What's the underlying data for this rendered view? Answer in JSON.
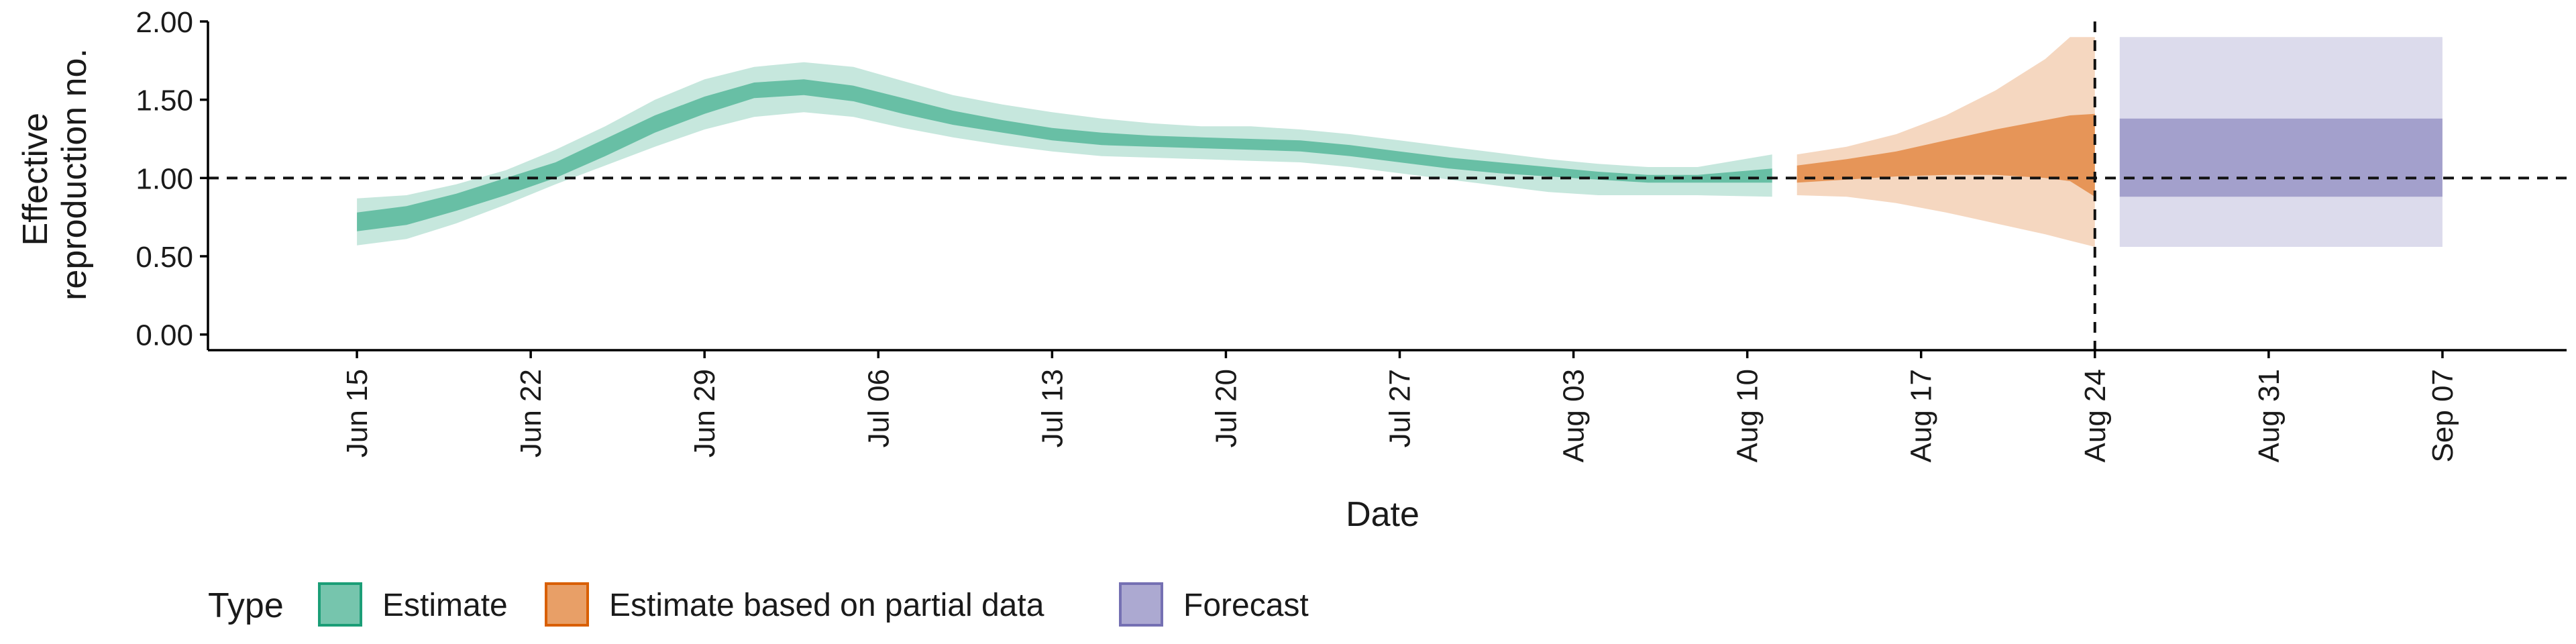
{
  "chart_data": {
    "type": "area",
    "xlabel": "Date",
    "ylabel_lines": [
      "Effective",
      "reproduction no."
    ],
    "ylim": [
      -0.1,
      2.0
    ],
    "yticks": [
      0.0,
      0.5,
      1.0,
      1.5,
      2.0
    ],
    "ytick_labels": [
      "0.00",
      "0.50",
      "1.00",
      "1.50",
      "2.00"
    ],
    "xlim": [
      "2020-06-09",
      "2020-09-12"
    ],
    "xtick_dates": [
      "2020-06-15",
      "2020-06-22",
      "2020-06-29",
      "2020-07-06",
      "2020-07-13",
      "2020-07-20",
      "2020-07-27",
      "2020-08-03",
      "2020-08-10",
      "2020-08-17",
      "2020-08-24",
      "2020-08-31",
      "2020-09-07"
    ],
    "xtick_labels": [
      "Jun 15",
      "Jun 22",
      "Jun 29",
      "Jul 06",
      "Jul 13",
      "Jul 20",
      "Jul 27",
      "Aug 03",
      "Aug 10",
      "Aug 17",
      "Aug 24",
      "Aug 31",
      "Sep 07"
    ],
    "reference_hline": 1.0,
    "reference_vline": "2020-08-24",
    "legend_title": "Type",
    "legend_position": "bottom-left",
    "series": [
      {
        "name": "Estimate",
        "color": "#1b9e77",
        "dates": [
          "2020-06-15",
          "2020-06-17",
          "2020-06-19",
          "2020-06-21",
          "2020-06-23",
          "2020-06-25",
          "2020-06-27",
          "2020-06-29",
          "2020-07-01",
          "2020-07-03",
          "2020-07-05",
          "2020-07-07",
          "2020-07-09",
          "2020-07-11",
          "2020-07-13",
          "2020-07-15",
          "2020-07-17",
          "2020-07-19",
          "2020-07-21",
          "2020-07-23",
          "2020-07-25",
          "2020-07-27",
          "2020-07-29",
          "2020-07-31",
          "2020-08-02",
          "2020-08-04",
          "2020-08-06",
          "2020-08-08",
          "2020-08-11"
        ],
        "upper_outer": [
          0.87,
          0.89,
          0.96,
          1.05,
          1.18,
          1.33,
          1.5,
          1.63,
          1.71,
          1.74,
          1.71,
          1.62,
          1.53,
          1.47,
          1.42,
          1.38,
          1.35,
          1.33,
          1.33,
          1.31,
          1.28,
          1.24,
          1.2,
          1.16,
          1.12,
          1.09,
          1.07,
          1.07,
          1.15
        ],
        "upper_inner": [
          0.78,
          0.82,
          0.9,
          1.0,
          1.1,
          1.25,
          1.4,
          1.52,
          1.61,
          1.63,
          1.59,
          1.51,
          1.43,
          1.37,
          1.32,
          1.29,
          1.27,
          1.26,
          1.25,
          1.24,
          1.21,
          1.17,
          1.13,
          1.1,
          1.07,
          1.04,
          1.02,
          1.02,
          1.06
        ],
        "median": [
          0.72,
          0.75,
          0.84,
          0.94,
          1.05,
          1.19,
          1.34,
          1.46,
          1.56,
          1.58,
          1.54,
          1.46,
          1.39,
          1.33,
          1.28,
          1.25,
          1.24,
          1.23,
          1.22,
          1.21,
          1.18,
          1.14,
          1.1,
          1.07,
          1.04,
          1.02,
          1.0,
          1.0,
          1.02
        ],
        "lower_inner": [
          0.66,
          0.7,
          0.79,
          0.89,
          1.0,
          1.14,
          1.29,
          1.41,
          1.51,
          1.53,
          1.49,
          1.41,
          1.34,
          1.29,
          1.24,
          1.21,
          1.2,
          1.19,
          1.18,
          1.17,
          1.14,
          1.1,
          1.06,
          1.03,
          1.01,
          0.99,
          0.97,
          0.97,
          0.97
        ],
        "lower_outer": [
          0.57,
          0.61,
          0.71,
          0.83,
          0.96,
          1.08,
          1.2,
          1.31,
          1.39,
          1.42,
          1.39,
          1.32,
          1.26,
          1.21,
          1.17,
          1.14,
          1.13,
          1.12,
          1.11,
          1.1,
          1.07,
          1.03,
          0.99,
          0.95,
          0.91,
          0.89,
          0.89,
          0.89,
          0.88
        ]
      },
      {
        "name": "Estimate based on partial data",
        "color": "#d95f02",
        "dates": [
          "2020-08-12",
          "2020-08-14",
          "2020-08-16",
          "2020-08-18",
          "2020-08-20",
          "2020-08-22",
          "2020-08-23",
          "2020-08-24"
        ],
        "upper_outer": [
          1.15,
          1.2,
          1.28,
          1.4,
          1.56,
          1.76,
          1.9,
          1.9
        ],
        "upper_inner": [
          1.08,
          1.12,
          1.17,
          1.24,
          1.31,
          1.37,
          1.4,
          1.41
        ],
        "median": [
          1.04,
          1.06,
          1.09,
          1.13,
          1.16,
          1.19,
          1.21,
          1.14
        ],
        "lower_inner": [
          0.97,
          0.99,
          1.01,
          1.02,
          1.02,
          1.0,
          0.98,
          0.88
        ],
        "lower_outer": [
          0.89,
          0.88,
          0.84,
          0.78,
          0.71,
          0.64,
          0.6,
          0.56
        ]
      },
      {
        "name": "Forecast",
        "color": "#7570b3",
        "dates": [
          "2020-08-25",
          "2020-09-07"
        ],
        "upper_outer": [
          1.9,
          1.9
        ],
        "upper_inner": [
          1.38,
          1.38
        ],
        "lower_inner": [
          0.88,
          0.88
        ],
        "lower_outer": [
          0.56,
          0.56
        ]
      }
    ]
  }
}
